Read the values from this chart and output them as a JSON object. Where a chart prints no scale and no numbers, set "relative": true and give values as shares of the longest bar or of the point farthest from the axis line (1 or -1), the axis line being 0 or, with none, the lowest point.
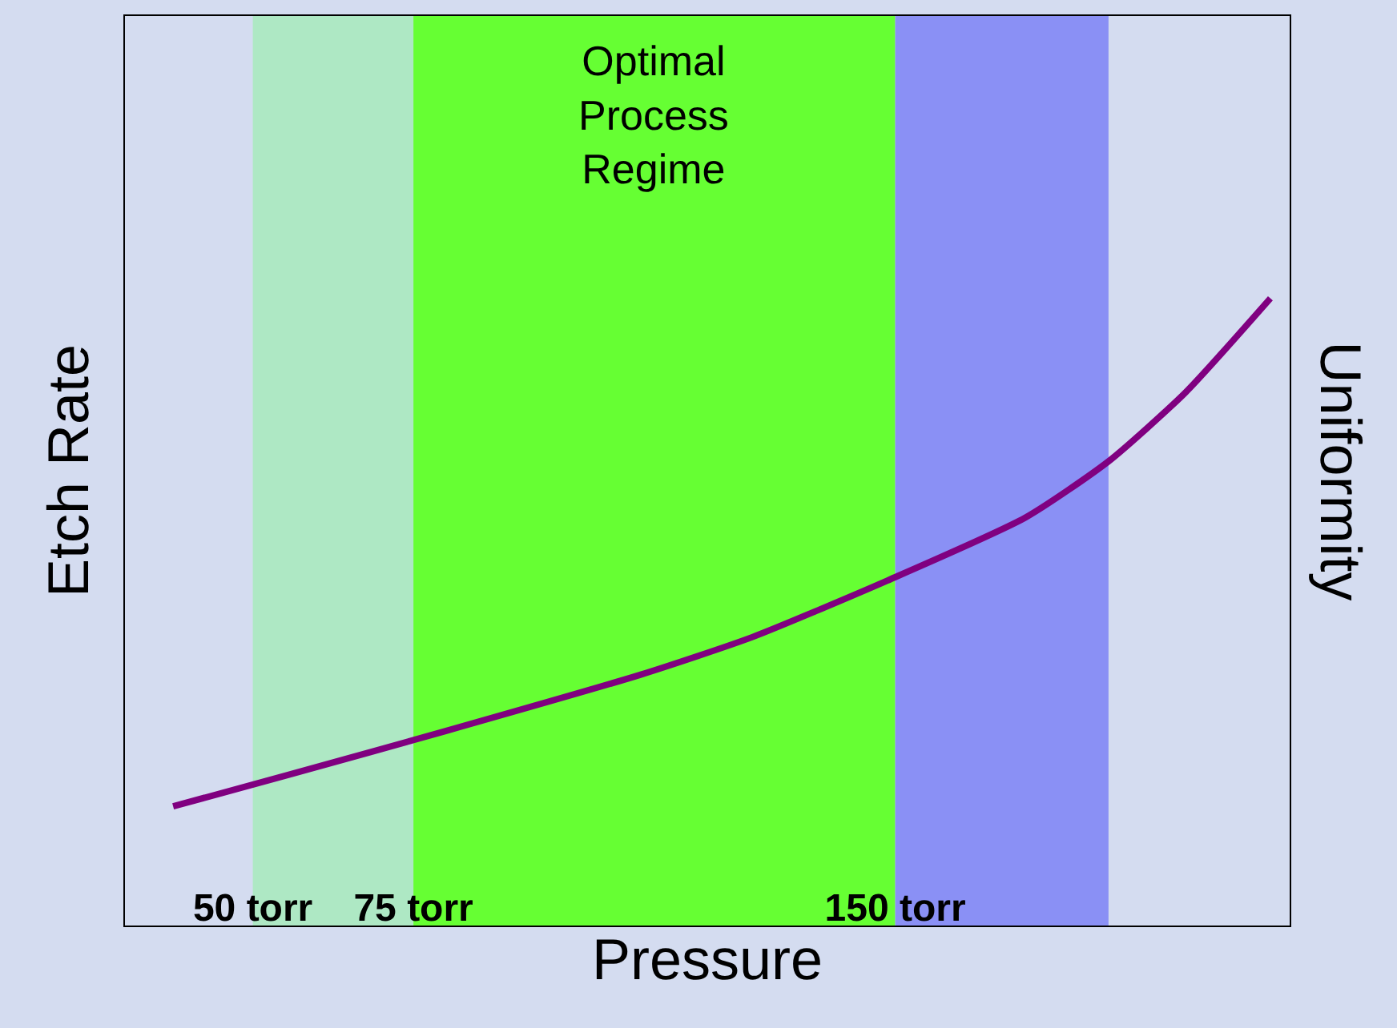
{
  "chart_data": {
    "type": "line",
    "relative": true,
    "xlabel": "Pressure",
    "ylabel": "Etch Rate",
    "y2label": "Uniformity",
    "x": [
      37.6,
      55.5,
      80.0,
      110.4,
      127.8,
      148.8,
      170.2,
      183.2,
      195.2,
      208.4
    ],
    "xlim": [
      30.1,
      211.4
    ],
    "xticks": [
      {
        "value": 50,
        "label": "50 torr"
      },
      {
        "value": 75,
        "label": "75 torr"
      },
      {
        "value": 150,
        "label": "150 torr"
      }
    ],
    "series": [
      {
        "color": "#800080",
        "values": [
          0.19,
          0.24,
          0.31,
          0.4,
          0.46,
          0.55,
          0.65,
          0.74,
          0.85,
          1.0
        ]
      }
    ],
    "bands": [
      {
        "axis": "x",
        "from": 50,
        "to": 75,
        "color": "#aee8c4"
      },
      {
        "axis": "x",
        "from": 75,
        "to": 150,
        "color": "#66ff33",
        "label": "Optimal Process Regime"
      },
      {
        "axis": "x",
        "from": 150,
        "to": 183.2,
        "color": "#8a90f5"
      }
    ],
    "grid": false,
    "marker": "none",
    "line_style": "solid"
  }
}
